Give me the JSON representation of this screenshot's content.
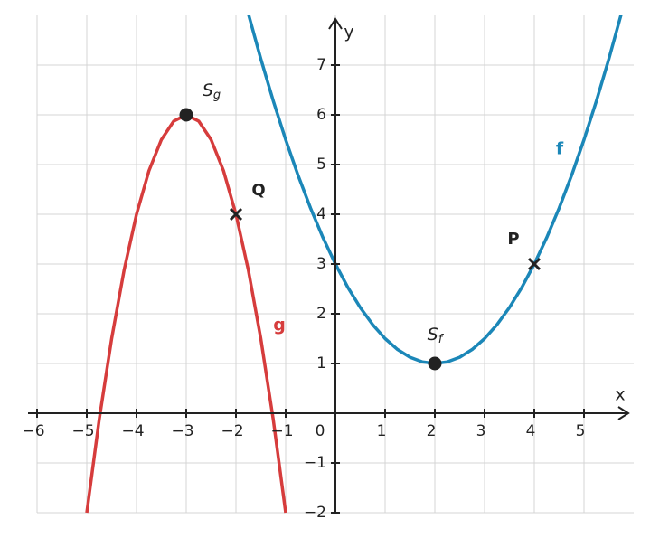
{
  "chart_data": {
    "type": "line",
    "x_label": "x",
    "y_label": "y",
    "xlim": [
      -6,
      6
    ],
    "ylim": [
      -2,
      8
    ],
    "xticks": [
      {
        "value": -6,
        "label": "−6"
      },
      {
        "value": -5,
        "label": "−5"
      },
      {
        "value": -4,
        "label": "−4"
      },
      {
        "value": -3,
        "label": "−3"
      },
      {
        "value": -2,
        "label": "−2"
      },
      {
        "value": -1,
        "label": "−1"
      },
      0,
      1,
      2,
      3,
      4,
      5
    ],
    "yticks": [
      {
        "value": -2,
        "label": "−2"
      },
      {
        "value": -1,
        "label": "−1"
      },
      1,
      2,
      3,
      4,
      5,
      6,
      7
    ],
    "grid": true,
    "series": [
      {
        "name": "f",
        "color": "#1b87b8",
        "x": [
          -1.75,
          -1.5,
          -1.25,
          -1,
          -0.75,
          -0.5,
          -0.25,
          0,
          0.25,
          0.5,
          0.75,
          1,
          1.25,
          1.5,
          1.75,
          2,
          2.25,
          2.5,
          2.75,
          3,
          3.25,
          3.5,
          3.75,
          4,
          4.25,
          4.5,
          4.75,
          5,
          5.25,
          5.5,
          5.75
        ],
        "values": [
          8.03125,
          7.125,
          6.28125,
          5.5,
          4.78125,
          4.125,
          3.53125,
          3,
          2.53125,
          2.125,
          1.78125,
          1.5,
          1.28125,
          1.125,
          1.03125,
          1,
          1.03125,
          1.125,
          1.28125,
          1.5,
          1.78125,
          2.125,
          2.53125,
          3,
          3.53125,
          4.125,
          4.78125,
          5.5,
          6.28125,
          7.125,
          8.03125
        ]
      },
      {
        "name": "g",
        "color": "#d63c3c",
        "x": [
          -5,
          -4.75,
          -4.5,
          -4.25,
          -4,
          -3.75,
          -3.5,
          -3.25,
          -3,
          -2.75,
          -2.5,
          -2.25,
          -2,
          -1.75,
          -1.5,
          -1.25,
          -1
        ],
        "values": [
          -2,
          -0.125,
          1.5,
          2.875,
          4,
          4.875,
          5.5,
          5.875,
          6,
          5.875,
          5.5,
          4.875,
          4,
          2.875,
          1.5,
          -0.125,
          -2
        ]
      }
    ],
    "points": [
      {
        "label": "S",
        "subscript": "g",
        "x": -3,
        "y": 6,
        "marker": "dot"
      },
      {
        "label": "Q",
        "x": -2,
        "y": 4,
        "marker": "cross"
      },
      {
        "label": "S",
        "subscript": "f",
        "x": 2,
        "y": 1,
        "marker": "dot"
      },
      {
        "label": "P",
        "x": 4,
        "y": 3,
        "marker": "cross"
      }
    ]
  }
}
